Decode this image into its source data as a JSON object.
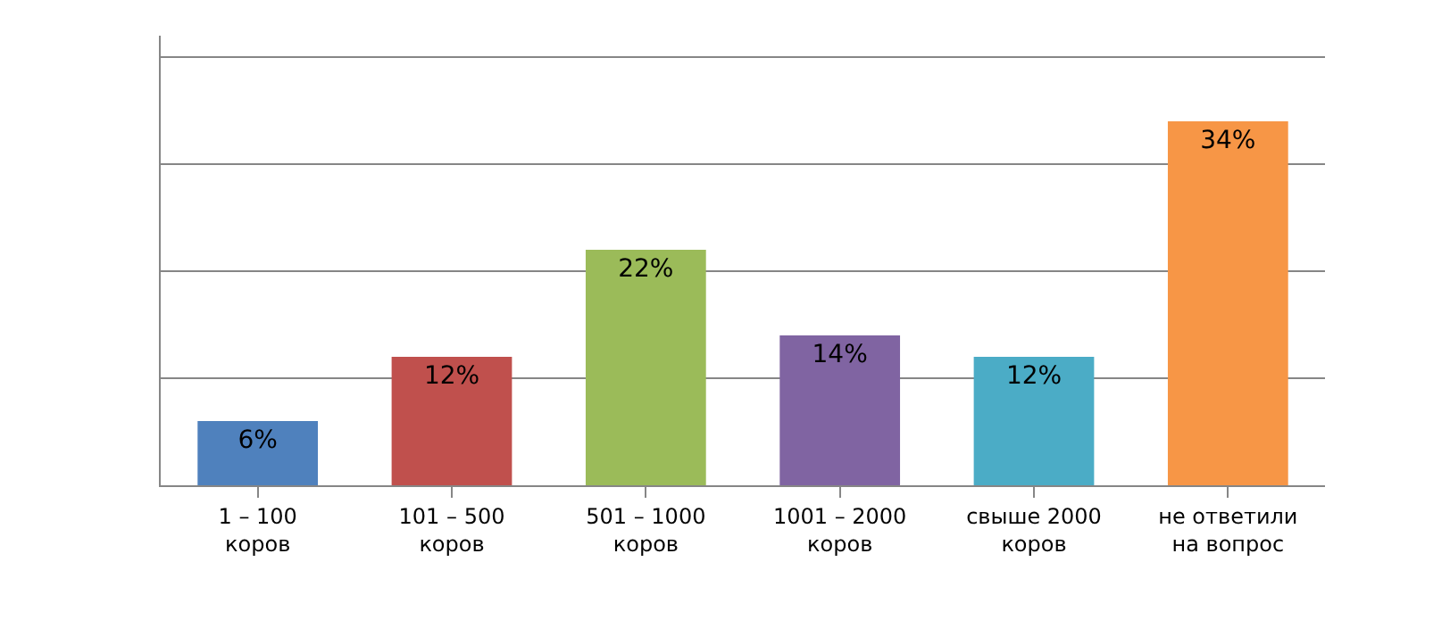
{
  "chart_data": {
    "type": "bar",
    "categories": [
      "1 – 100 коров",
      "101 – 500 коров",
      "501 – 1000 коров",
      "1001 – 2000 коров",
      "свыше 2000 коров",
      "не ответили на вопрос"
    ],
    "values": [
      6,
      12,
      22,
      14,
      12,
      34
    ],
    "value_labels": [
      "6%",
      "12%",
      "22%",
      "14%",
      "12%",
      "34%"
    ],
    "colors": [
      "#4f81bd",
      "#c0504d",
      "#9bbb59",
      "#8064a2",
      "#4bacc6",
      "#f79646"
    ],
    "ylim": [
      0,
      42
    ],
    "yticks": [
      {
        "value": 0,
        "label": null
      },
      {
        "value": 10,
        "label": null
      },
      {
        "value": 20,
        "label": null
      },
      {
        "value": 30,
        "label": null
      },
      {
        "value": 40,
        "label": null
      }
    ],
    "grid": "y",
    "tick_labels": "x"
  }
}
